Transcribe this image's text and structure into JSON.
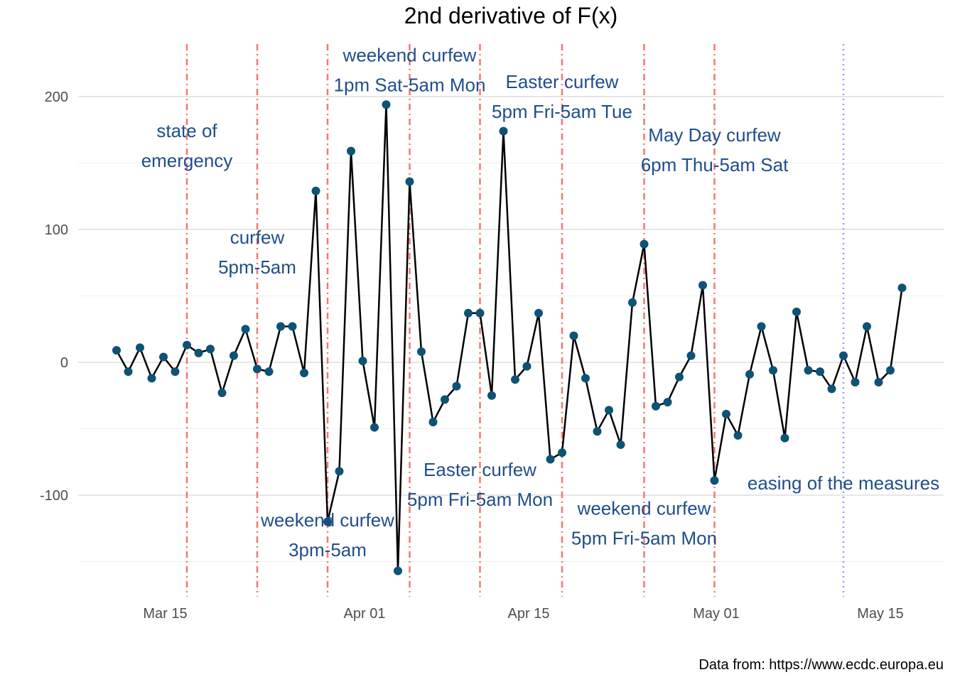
{
  "chart_data": {
    "type": "line",
    "title": "2nd derivative of F(x)",
    "xlabel": "",
    "ylabel": "",
    "caption": "Data from: https://www.ecdc.europa.eu",
    "x_start": "2020-03-10",
    "y_ticks": [
      -100,
      0,
      100,
      200
    ],
    "y_tick_labels": [
      "-100",
      "0",
      "100",
      "200"
    ],
    "x_ticks": [
      "2020-03-15",
      "2020-04-01",
      "2020-04-15",
      "2020-05-01",
      "2020-05-15"
    ],
    "x_tick_labels": [
      "Mar 15",
      "Apr 01",
      "Apr 15",
      "May 01",
      "May 15"
    ],
    "ylim": [
      -160,
      240
    ],
    "grid": true,
    "series": [
      {
        "values": [
          9,
          -7,
          11,
          -12,
          4,
          -7,
          13,
          7,
          10,
          -23,
          5,
          25,
          -5,
          -7,
          27,
          27,
          -8,
          129,
          -120,
          -82,
          159,
          1,
          -49,
          194,
          -157,
          136,
          8,
          -45,
          -28,
          -18,
          37,
          37,
          -25,
          174,
          -13,
          -3,
          37,
          -73,
          -68,
          20,
          -12,
          -52,
          -36,
          -62,
          45,
          89,
          -33,
          -30,
          -11,
          5,
          58,
          -89,
          -39,
          -55,
          -9,
          27,
          -6,
          -57,
          38,
          -6,
          -7,
          -20,
          5,
          -15,
          27,
          -15,
          -6,
          56
        ],
        "color": "#0e5276"
      }
    ],
    "line_color": "#000000",
    "point_color": "#0e5276",
    "vlines": [
      {
        "date": "2020-03-16",
        "style": "dashdot",
        "color": "#f8766d"
      },
      {
        "date": "2020-03-22",
        "style": "dashdot",
        "color": "#f8766d"
      },
      {
        "date": "2020-03-28",
        "style": "dashdot",
        "color": "#f8766d"
      },
      {
        "date": "2020-04-04",
        "style": "dashdot",
        "color": "#f8766d"
      },
      {
        "date": "2020-04-10",
        "style": "dashdot",
        "color": "#f8766d"
      },
      {
        "date": "2020-04-17",
        "style": "dashdot",
        "color": "#f8766d"
      },
      {
        "date": "2020-04-24",
        "style": "dashdot",
        "color": "#f8766d"
      },
      {
        "date": "2020-04-30",
        "style": "dashdot",
        "color": "#f8766d"
      },
      {
        "date": "2020-05-11",
        "style": "dotted",
        "color": "#9999ff"
      }
    ],
    "annotations": [
      {
        "date": "2020-03-16",
        "y": 163,
        "lines": [
          "state of",
          "emergency"
        ]
      },
      {
        "date": "2020-03-22",
        "y": 83,
        "lines": [
          "curfew",
          "5pm-5am"
        ]
      },
      {
        "date": "2020-03-28",
        "y": -130,
        "lines": [
          "weekend curfew",
          "3pm-5am"
        ]
      },
      {
        "date": "2020-04-04",
        "y": 220,
        "lines": [
          "weekend curfew",
          "1pm Sat-5am Mon"
        ]
      },
      {
        "date": "2020-04-10",
        "y": -92,
        "lines": [
          "Easter curfew",
          "5pm Fri-5am Mon"
        ]
      },
      {
        "date": "2020-04-17",
        "y": 200,
        "lines": [
          "Easter curfew",
          "5pm Fri-5am Tue"
        ]
      },
      {
        "date": "2020-04-24",
        "y": -121,
        "lines": [
          "weekend curfew",
          "5pm Fri-5am Mon"
        ]
      },
      {
        "date": "2020-04-30",
        "y": 160,
        "lines": [
          "May Day curfew",
          "6pm Thu-5am Sat"
        ]
      },
      {
        "date": "2020-05-11",
        "y": -91,
        "lines": [
          "easing of the measures"
        ]
      }
    ],
    "annotation_color": "#1f4e8c"
  }
}
